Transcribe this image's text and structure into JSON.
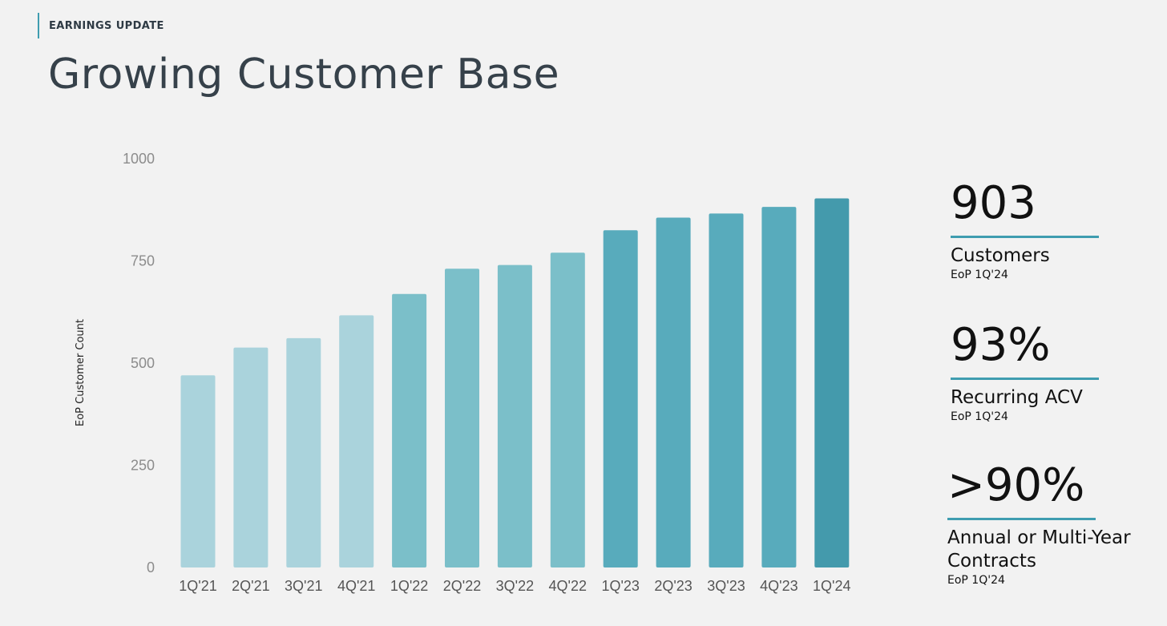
{
  "header": {
    "kicker": "EARNINGS UPDATE",
    "title": "Growing Customer Base"
  },
  "chart_data": {
    "type": "bar",
    "title": "",
    "xlabel": "",
    "ylabel": "EoP Customer Count",
    "ylim": [
      0,
      1000
    ],
    "yticks": [
      0,
      250,
      500,
      750,
      1000
    ],
    "grid": false,
    "categories": [
      "1Q'21",
      "2Q'21",
      "3Q'21",
      "4Q'21",
      "1Q'22",
      "2Q'22",
      "3Q'22",
      "4Q'22",
      "1Q'23",
      "2Q'23",
      "3Q'23",
      "4Q'23",
      "1Q'24"
    ],
    "values": [
      470,
      538,
      561,
      617,
      669,
      731,
      740,
      770,
      825,
      856,
      866,
      882,
      903
    ],
    "colors": [
      "#aad3dc",
      "#aad3dc",
      "#aad3dc",
      "#aad3dc",
      "#7bbfc9",
      "#7bbfc9",
      "#7bbfc9",
      "#7bbfc9",
      "#58abbc",
      "#58abbc",
      "#58abbc",
      "#58abbc",
      "#449aac"
    ]
  },
  "stats": [
    {
      "value": "903",
      "label": "Customers",
      "sub": "EoP 1Q'24"
    },
    {
      "value": "93%",
      "label": "Recurring ACV",
      "sub": "EoP 1Q'24"
    },
    {
      "value": ">90%",
      "label": "Annual or Multi-Year Contracts",
      "sub": "EoP 1Q'24"
    }
  ],
  "accent_color": "#3f9db0"
}
